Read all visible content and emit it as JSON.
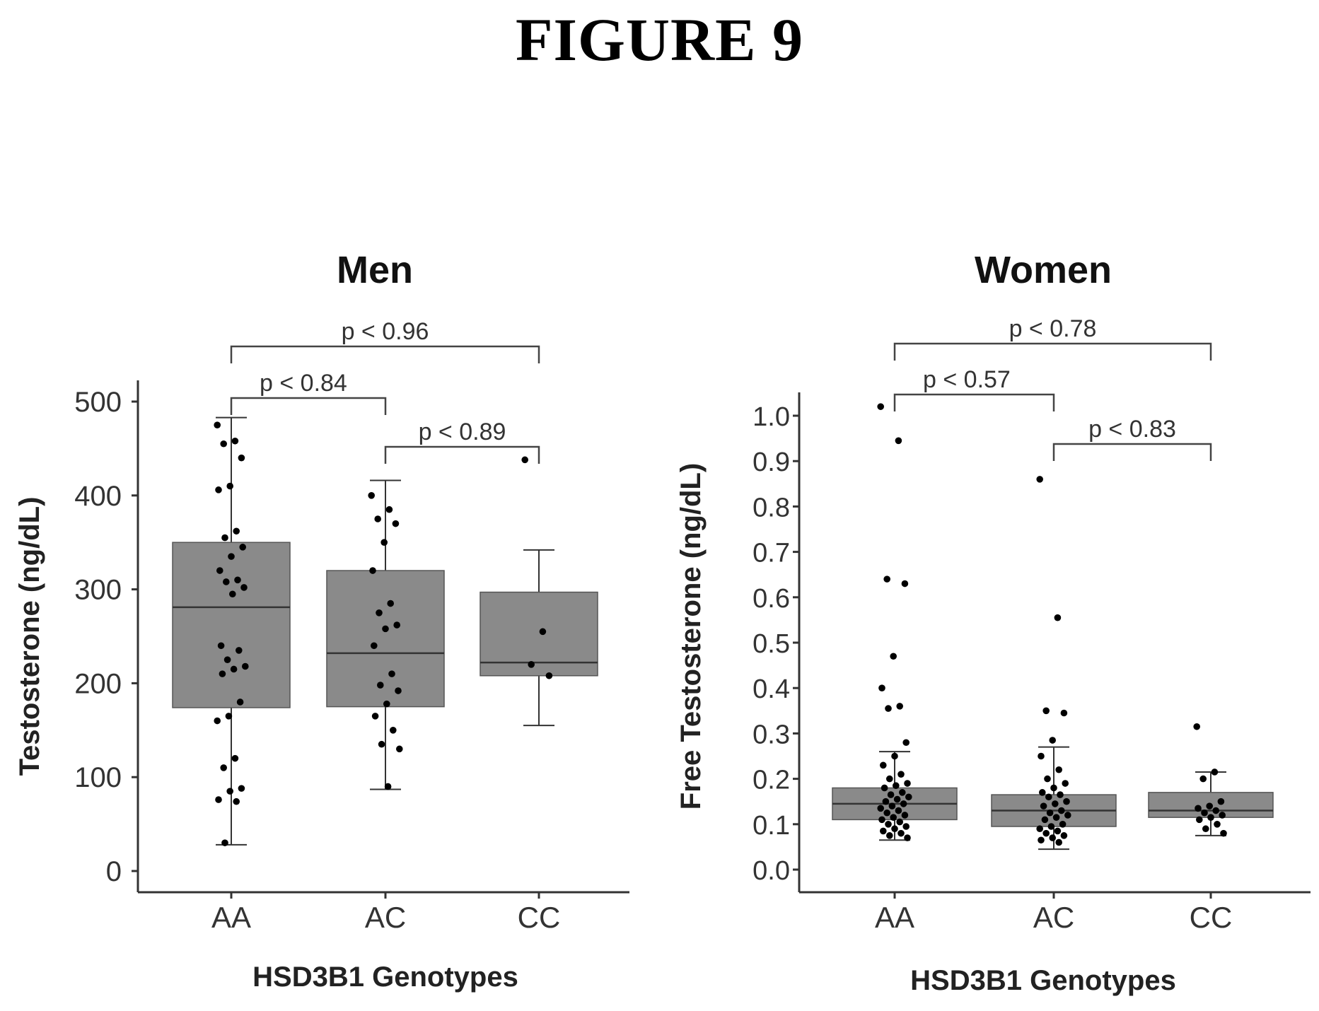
{
  "figure_title": "FIGURE 9",
  "chart_data": [
    {
      "type": "box",
      "title": "Men",
      "xlabel": "HSD3B1 Genotypes",
      "ylabel": "Testosterone (ng/dL)",
      "categories": [
        "AA",
        "AC",
        "CC"
      ],
      "ylim": [
        0,
        500
      ],
      "yticks": [
        "0",
        "100",
        "200",
        "300",
        "400",
        "500"
      ],
      "ytick_values": [
        0,
        100,
        200,
        300,
        400,
        500
      ],
      "grid": false,
      "boxes": [
        {
          "category": "AA",
          "whisker_low": 28,
          "q1": 174,
          "median": 281,
          "q3": 350,
          "whisker_high": 483
        },
        {
          "category": "AC",
          "whisker_low": 87,
          "q1": 175,
          "median": 232,
          "q3": 320,
          "whisker_high": 416
        },
        {
          "category": "CC",
          "whisker_low": 155,
          "q1": 208,
          "median": 222,
          "q3": 297,
          "whisker_high": 342
        }
      ],
      "points": [
        {
          "category": "AA",
          "values": [
            475,
            458,
            455,
            440,
            410,
            406,
            362,
            355,
            345,
            335,
            320,
            310,
            308,
            302,
            295,
            240,
            235,
            225,
            218,
            215,
            210,
            180,
            165,
            160,
            120,
            110,
            88,
            85,
            76,
            74,
            30
          ]
        },
        {
          "category": "AC",
          "values": [
            400,
            385,
            375,
            370,
            350,
            320,
            285,
            275,
            262,
            258,
            240,
            210,
            198,
            192,
            178,
            165,
            150,
            135,
            130,
            90
          ]
        },
        {
          "category": "CC",
          "values": [
            438,
            255,
            220,
            208
          ]
        }
      ],
      "comparisons": [
        {
          "label": "p < 0.96",
          "from": "AA",
          "to": "CC"
        },
        {
          "label": "p < 0.84",
          "from": "AA",
          "to": "AC"
        },
        {
          "label": "p < 0.89",
          "from": "AC",
          "to": "CC"
        }
      ]
    },
    {
      "type": "box",
      "title": "Women",
      "xlabel": "HSD3B1 Genotypes",
      "ylabel": "Free Testosterone (ng/dL)",
      "categories": [
        "AA",
        "AC",
        "CC"
      ],
      "ylim": [
        0,
        1.0
      ],
      "yticks": [
        "0.0",
        "0.1",
        "0.2",
        "0.3",
        "0.4",
        "0.5",
        "0.6",
        "0.7",
        "0.8",
        "0.9",
        "1.0"
      ],
      "ytick_values": [
        0,
        0.1,
        0.2,
        0.3,
        0.4,
        0.5,
        0.6,
        0.7,
        0.8,
        0.9,
        1.0
      ],
      "grid": false,
      "boxes": [
        {
          "category": "AA",
          "whisker_low": 0.065,
          "q1": 0.11,
          "median": 0.145,
          "q3": 0.18,
          "whisker_high": 0.26
        },
        {
          "category": "AC",
          "whisker_low": 0.045,
          "q1": 0.095,
          "median": 0.13,
          "q3": 0.165,
          "whisker_high": 0.27
        },
        {
          "category": "CC",
          "whisker_low": 0.075,
          "q1": 0.115,
          "median": 0.13,
          "q3": 0.17,
          "whisker_high": 0.215
        }
      ],
      "points": [
        {
          "category": "AA",
          "values": [
            1.02,
            0.945,
            0.64,
            0.63,
            0.47,
            0.4,
            0.36,
            0.355,
            0.28,
            0.25,
            0.23,
            0.21,
            0.2,
            0.19,
            0.185,
            0.18,
            0.17,
            0.165,
            0.16,
            0.155,
            0.15,
            0.145,
            0.14,
            0.135,
            0.13,
            0.125,
            0.12,
            0.115,
            0.11,
            0.105,
            0.1,
            0.095,
            0.09,
            0.085,
            0.08,
            0.075,
            0.07
          ]
        },
        {
          "category": "AC",
          "values": [
            0.86,
            0.555,
            0.35,
            0.345,
            0.285,
            0.25,
            0.22,
            0.2,
            0.19,
            0.18,
            0.17,
            0.165,
            0.16,
            0.15,
            0.145,
            0.14,
            0.13,
            0.125,
            0.12,
            0.115,
            0.11,
            0.1,
            0.095,
            0.09,
            0.085,
            0.08,
            0.075,
            0.07,
            0.065,
            0.06
          ]
        },
        {
          "category": "CC",
          "values": [
            0.315,
            0.215,
            0.2,
            0.15,
            0.14,
            0.135,
            0.13,
            0.125,
            0.12,
            0.115,
            0.11,
            0.1,
            0.09,
            0.08
          ]
        }
      ],
      "comparisons": [
        {
          "label": "p < 0.78",
          "from": "AA",
          "to": "CC"
        },
        {
          "label": "p < 0.57",
          "from": "AA",
          "to": "AC"
        },
        {
          "label": "p < 0.83",
          "from": "AC",
          "to": "CC"
        }
      ]
    }
  ]
}
